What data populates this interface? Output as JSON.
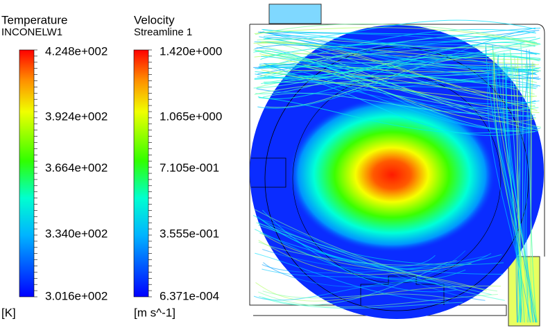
{
  "legends": [
    {
      "title": "Temperature",
      "subtitle": "INCONELW1",
      "ticks": [
        "4.248e+002",
        "3.924e+002",
        "3.664e+002",
        "3.340e+002",
        "3.016e+002"
      ],
      "unit": "[K]"
    },
    {
      "title": "Velocity",
      "subtitle": "Streamline 1",
      "ticks": [
        "1.420e+000",
        "1.065e+000",
        "7.105e-001",
        "3.555e-001",
        "6.371e-004"
      ],
      "unit": "[m s^-1]"
    }
  ]
}
